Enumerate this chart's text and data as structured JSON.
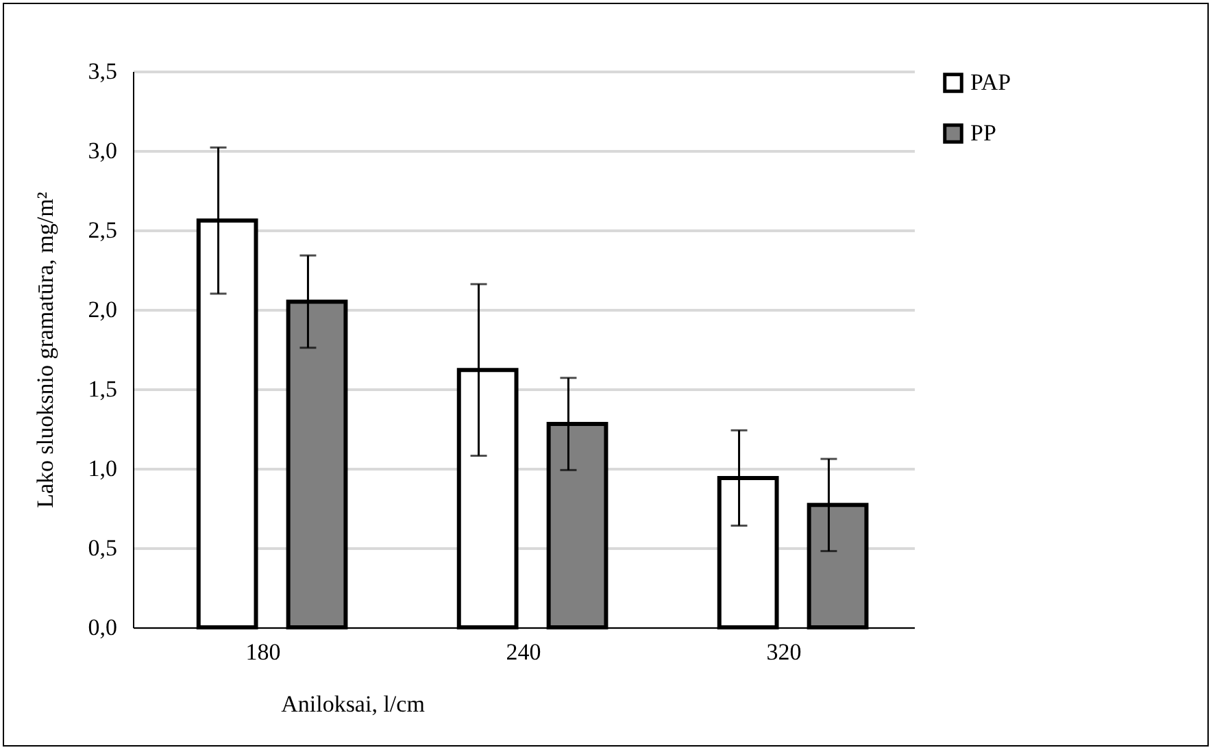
{
  "chart_data": {
    "type": "bar",
    "xlabel": "Aniloksai, l/cm",
    "ylabel": "Lako sluoksnio gramatūra, mg/m²",
    "categories": [
      "180",
      "240",
      "320"
    ],
    "series": [
      {
        "name": "PAP",
        "color": "#ffffff",
        "values": [
          2.56,
          1.62,
          0.94
        ],
        "errors": [
          0.46,
          0.54,
          0.3
        ]
      },
      {
        "name": "PP",
        "color": "#808080",
        "values": [
          2.05,
          1.28,
          0.77
        ],
        "errors": [
          0.29,
          0.29,
          0.29
        ]
      }
    ],
    "ylim": [
      0,
      3.5
    ],
    "yticks": [
      {
        "value": 0,
        "label": "0,0"
      },
      {
        "value": 0.5,
        "label": "0,5"
      },
      {
        "value": 1,
        "label": "1,0"
      },
      {
        "value": 1.5,
        "label": "1,5"
      },
      {
        "value": 2,
        "label": "2,0"
      },
      {
        "value": 2.5,
        "label": "2,5"
      },
      {
        "value": 3,
        "label": "3,0"
      },
      {
        "value": 3.5,
        "label": "3,5"
      }
    ],
    "grid": "y",
    "legend": "right"
  }
}
